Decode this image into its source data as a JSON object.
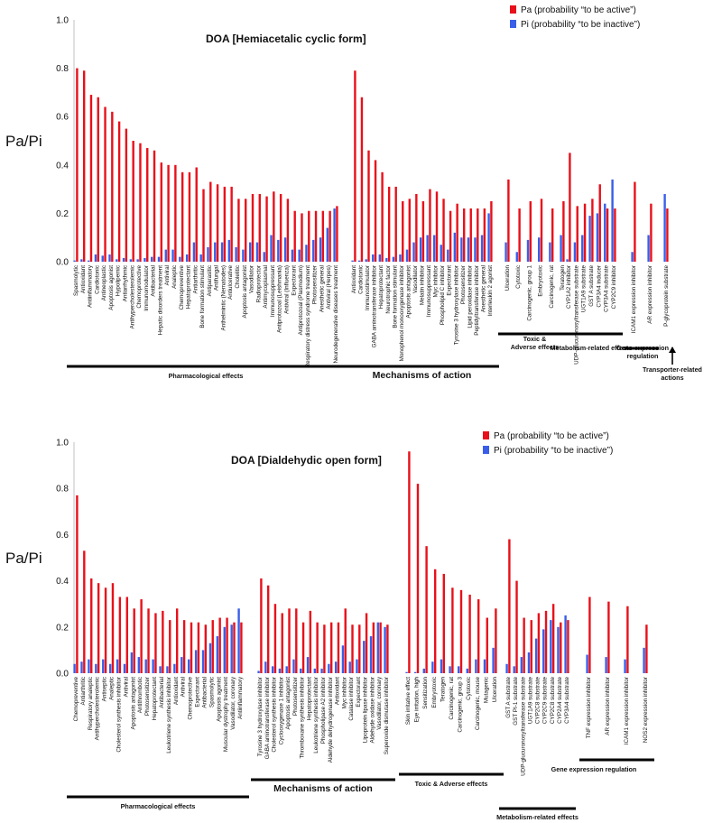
{
  "colors": {
    "pa": "#e8101a",
    "pi": "#3a5ee8"
  },
  "chart_data": [
    {
      "type": "bar",
      "title": "DOA [Hemiacetalic cyclic form]",
      "ylabel": "Pa/Pi",
      "ylim": [
        0,
        1.0
      ],
      "yticks": [
        "1.0",
        "0.8",
        "0.6",
        "0.4",
        "0.2",
        "0.0"
      ],
      "legend": {
        "pa": "Pa (probability “to be active”)",
        "pi": "Pi (probability “to be inactive”)"
      },
      "groups": [
        {
          "label": "Pharmacological effects",
          "categories": [
            "Spasmolytic",
            "Antioxidant",
            "Antiinflammatory",
            "Cardiotonic",
            "Antineoplastic",
            "Apoptosis agonist",
            "Hypolipemic",
            "Antiarrhythmic",
            "Antihypercholesterolemic",
            "Chemoprotective",
            "Immunomodulator",
            "Antibacterial",
            "Hepatic disorders treatment",
            "Antiviral",
            "Analeptic",
            "Chemopreventive",
            "Hepatoprotectant",
            "Antiarthritic",
            "Bone formation stimulant",
            "Antiparasitic",
            "Antifungal",
            "Anthelmintic (Nematodes)",
            "Antiulcerative",
            "Cholelitic",
            "Apoptosis antagonist",
            "Vasodilator",
            "Radioprotector",
            "Antimycoplasmal",
            "Immunosuppressant",
            "Antiprotozoal (Leishmania)",
            "Antiviral (Influenza)",
            "Expectorant",
            "Antiprotozoal (Plasmodium)",
            "Respiratory distress syndrome treatment",
            "Photosensitizer",
            "Anesthetic general",
            "Antiviral (Herpes)",
            "Neurodegenerative diseases treatment"
          ],
          "pa": [
            0.8,
            0.79,
            0.69,
            0.68,
            0.64,
            0.62,
            0.58,
            0.55,
            0.5,
            0.49,
            0.47,
            0.46,
            0.41,
            0.4,
            0.4,
            0.37,
            0.37,
            0.39,
            0.3,
            0.33,
            0.32,
            0.31,
            0.31,
            0.26,
            0.26,
            0.28,
            0.28,
            0.27,
            0.29,
            0.28,
            0.26,
            0.21,
            0.2,
            0.21,
            0.21,
            0.21,
            0.21,
            0.23
          ],
          "pi": [
            0.005,
            0.01,
            0.005,
            0.03,
            0.025,
            0.03,
            0.01,
            0.015,
            0.01,
            0.01,
            0.015,
            0.02,
            0.02,
            0.05,
            0.05,
            0.02,
            0.03,
            0.08,
            0.03,
            0.06,
            0.08,
            0.08,
            0.09,
            0.06,
            0.05,
            0.08,
            0.08,
            0.04,
            0.11,
            0.09,
            0.1,
            0.05,
            0.05,
            0.07,
            0.09,
            0.1,
            0.14,
            0.22
          ]
        },
        {
          "label": "Mechanisms of action",
          "categories": [
            "Antioxidant",
            "Cardiotonic",
            "Immunostimulator",
            "GABA aminotransferase inhibitor",
            "Hepatoprotectant",
            "Neurotrophic factor",
            "Bone formation stimulant",
            "Monophenol monooxygenase inhibitor",
            "Apoptosis antagonist",
            "Vasodilator",
            "Melatin inhibitor",
            "Immunosuppressant",
            "Myc inhibitor",
            "Phospholipid C inhibitor",
            "Expectorant",
            "Tyrosine 3 hydroxylase inhibitor",
            "Photosensitizer",
            "Lipid peroxidase inhibitor",
            "Peptidyltransferase inhibitor",
            "Anesthetic general",
            "Interleukin 2 agonist"
          ],
          "pa": [
            0.79,
            0.68,
            0.46,
            0.42,
            0.37,
            0.31,
            0.31,
            0.25,
            0.26,
            0.28,
            0.25,
            0.3,
            0.29,
            0.26,
            0.21,
            0.24,
            0.22,
            0.22,
            0.22,
            0.22,
            0.25
          ],
          "pi": [
            0.005,
            0.005,
            0.01,
            0.03,
            0.03,
            0.015,
            0.02,
            0.03,
            0.05,
            0.08,
            0.1,
            0.11,
            0.11,
            0.07,
            0.05,
            0.12,
            0.1,
            0.1,
            0.1,
            0.11,
            0.2
          ]
        },
        {
          "label": "Toxic & Adverse effects",
          "categories": [
            "Ulceration",
            "Cytotoxic",
            "Carcinogenic, group 1",
            "Embryotoxic",
            "Carcinogenic, rat",
            "Teratogen"
          ],
          "pa": [
            0.34,
            0.22,
            0.25,
            0.26,
            0.22,
            0.25
          ],
          "pi": [
            0.08,
            0.04,
            0.09,
            0.1,
            0.08,
            0.11
          ]
        },
        {
          "label": "Metabolism-related effects",
          "categories": [
            "CYP1A2 inhibitor",
            "UDP-glucuronosyltransferase substrate",
            "UGT1A9 substrate",
            "GST A substrate",
            "CYP3A4 inducer",
            "CYP3A4 substrate",
            "CYP2C9 inhibitor"
          ],
          "pa": [
            0.45,
            0.23,
            0.24,
            0.26,
            0.32,
            0.22,
            0.22
          ],
          "pi": [
            0.01,
            0.08,
            0.11,
            0.19,
            0.2,
            0.24,
            0.34
          ]
        },
        {
          "label": "Gene expression regulation",
          "categories": [
            "ICAM1 expression inhibitor",
            "AR expression inhibitor"
          ],
          "pa": [
            0.33,
            0.24
          ],
          "pi": [
            0.04,
            0.11
          ]
        },
        {
          "label": "Transporter-related actions",
          "categories": [
            "P-glycoprotein substrate"
          ],
          "pa": [
            0.22
          ],
          "pi": [
            0.28
          ]
        }
      ]
    },
    {
      "type": "bar",
      "title": "DOA [Dialdehydic open form]",
      "ylabel": "Pa/Pi",
      "ylim": [
        0,
        1.0
      ],
      "yticks": [
        "1.0",
        "0.8",
        "0.6",
        "0.4",
        "0.2",
        "0.0"
      ],
      "legend": {
        "pa": "Pa (probability “to be active”)",
        "pi": "Pi (probability “to be inactive”)"
      },
      "groups": [
        {
          "label": "Pharmacological effects",
          "categories": [
            "Chemopreventive",
            "Antiarthritic",
            "Respiratory analeptic",
            "Antihypercholesterolemic",
            "Antiseptic",
            "Analeptic",
            "Cholesterol synthesis inhibitor",
            "Antiviral",
            "Apoptosis antagonist",
            "Antithrombotic",
            "Photosensitizer",
            "Hepatoprotectant",
            "Antibacterial",
            "Leukotriene synthesis inhibitor",
            "Antioxidant",
            "Antiviral",
            "Chemoprotective",
            "Expectorant",
            "Antibacterial",
            "Spasmolytic",
            "Apoptosis agonist",
            "Muscular dystrophy treatment",
            "Vasodilator, coronary",
            "Antiinflammatory"
          ],
          "pa": [
            0.77,
            0.53,
            0.41,
            0.39,
            0.37,
            0.39,
            0.33,
            0.33,
            0.28,
            0.32,
            0.28,
            0.26,
            0.27,
            0.23,
            0.28,
            0.23,
            0.22,
            0.22,
            0.21,
            0.23,
            0.24,
            0.24,
            0.22,
            0.22
          ],
          "pi": [
            0.04,
            0.05,
            0.06,
            0.04,
            0.06,
            0.04,
            0.06,
            0.04,
            0.09,
            0.07,
            0.06,
            0.06,
            0.03,
            0.03,
            0.04,
            0.07,
            0.06,
            0.1,
            0.1,
            0.13,
            0.16,
            0.2,
            0.21,
            0.28
          ]
        },
        {
          "label": "Mechanisms of action",
          "categories": [
            "Tyrosine 3 hydroxylase inhibitor",
            "GABA aminotransferase inhibitor",
            "Cholesterol synthesis inhibitor",
            "Cyclooxygenase 1 inhibitor",
            "Apoptosis antagonist",
            "Photosensitizer",
            "Thromboxane synthesis inhibitor",
            "Hepatoprotectant",
            "Leukotriene synthesis inhibitor",
            "Phospholipase A2 inhibitor",
            "Aldehyde dehydrogenase inhibitor",
            "Antioxidant",
            "Myc inhibitor",
            "Catalase inhibitor",
            "Expectorant",
            "Lipoprotein lipase inhibitor",
            "Aldehyde oxidase inhibitor",
            "Vasodilator, coronary",
            "Superoxide dismutase inhibitor"
          ],
          "pa": [
            0.41,
            0.38,
            0.3,
            0.26,
            0.28,
            0.28,
            0.22,
            0.27,
            0.22,
            0.21,
            0.22,
            0.22,
            0.28,
            0.21,
            0.21,
            0.26,
            0.22,
            0.22,
            0.21
          ],
          "pi": [
            0.01,
            0.05,
            0.03,
            0.02,
            0.03,
            0.06,
            0.02,
            0.07,
            0.02,
            0.02,
            0.04,
            0.05,
            0.12,
            0.05,
            0.06,
            0.14,
            0.16,
            0.22,
            0.2
          ]
        },
        {
          "label": "Toxic & Adverse effects",
          "categories": [
            "Skin irritative effect",
            "Eye irritation, high",
            "Sensitization",
            "Embryotoxic",
            "Teratogen",
            "Carcinogenic, rat",
            "Carcinogenic, group 3",
            "Cytotoxic",
            "Carcinogenic, mouse",
            "Mutagenic",
            "Ulceration"
          ],
          "pa": [
            0.96,
            0.82,
            0.55,
            0.45,
            0.43,
            0.37,
            0.36,
            0.34,
            0.32,
            0.24,
            0.28
          ],
          "pi": [
            0.005,
            0.005,
            0.02,
            0.05,
            0.06,
            0.03,
            0.03,
            0.02,
            0.06,
            0.06,
            0.11
          ]
        },
        {
          "label": "Metabolism-related effects",
          "categories": [
            "GST A substrate",
            "GST PI-1 substrate",
            "UDP-glucuronosyltransferase substrate",
            "UGT1A9 substrate",
            "CYP2C8 substrate",
            "CYP2C9 substrate",
            "CYP2C8 substrate",
            "CYP2A4 substrate",
            "CYP3A4 substrate"
          ],
          "pa": [
            0.58,
            0.4,
            0.24,
            0.23,
            0.26,
            0.27,
            0.3,
            0.22,
            0.23
          ],
          "pi": [
            0.04,
            0.03,
            0.07,
            0.09,
            0.15,
            0.19,
            0.23,
            0.2,
            0.25
          ]
        },
        {
          "label": "Gene expression regulation",
          "categories": [
            "TNF expression inhibitor",
            "AR expression inhibitor",
            "ICAM1 expression inhibitor",
            "NOS2 expression inhibitor"
          ],
          "pa": [
            0.33,
            0.31,
            0.29,
            0.21
          ],
          "pi": [
            0.08,
            0.07,
            0.06,
            0.11
          ]
        }
      ]
    }
  ]
}
